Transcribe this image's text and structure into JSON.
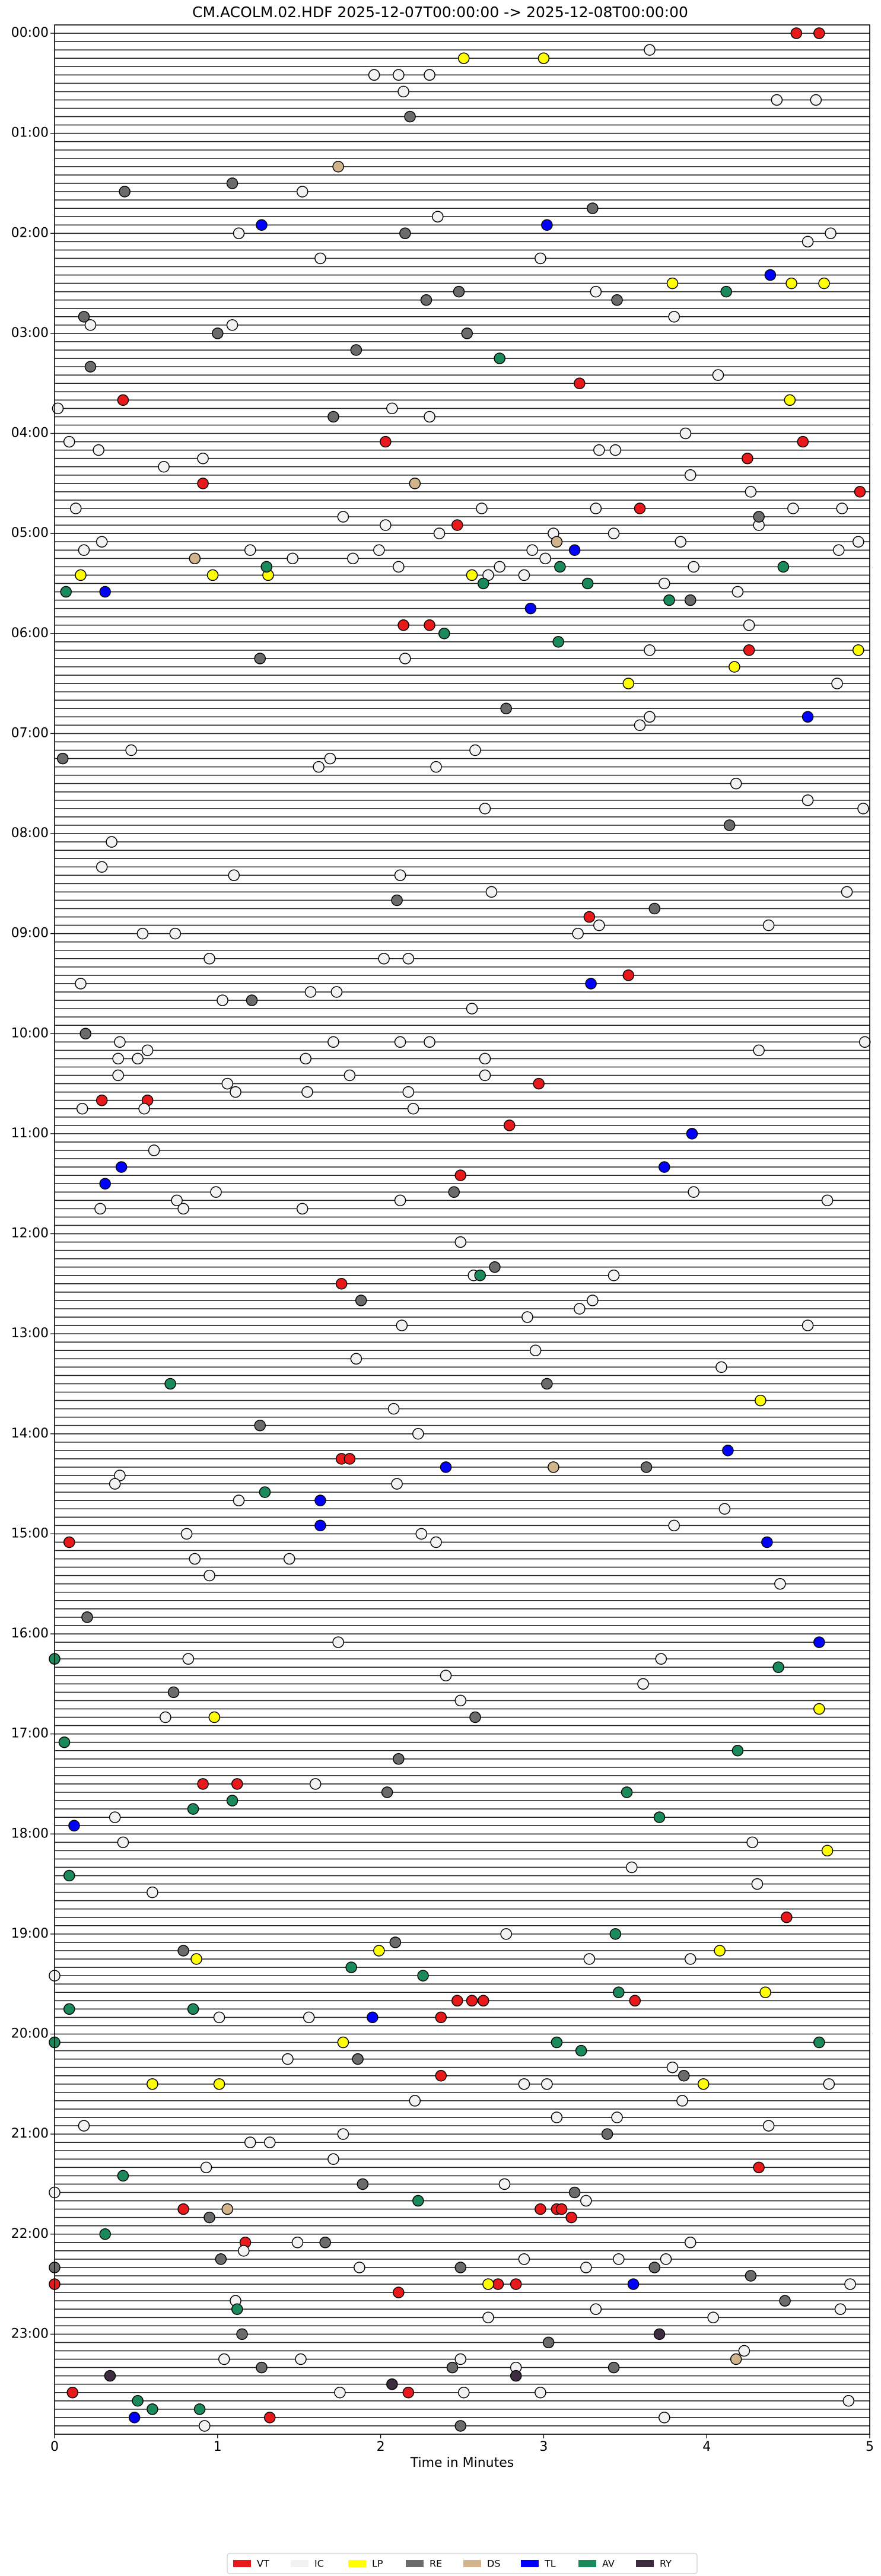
{
  "chart_data": {
    "type": "scatter",
    "title": "CM.ACOLM.02.HDF  2025-12-07T00:00:00 -> 2025-12-08T00:00:00",
    "x_label": "Time in Minutes",
    "xlim": [
      0,
      5
    ],
    "xticks": [
      0,
      1,
      2,
      3,
      4,
      5
    ],
    "ylim": [
      1440,
      -5
    ],
    "yticks": [
      {
        "value": 0,
        "label": "00:00"
      },
      {
        "value": 60,
        "label": "01:00"
      },
      {
        "value": 120,
        "label": "02:00"
      },
      {
        "value": 180,
        "label": "03:00"
      },
      {
        "value": 240,
        "label": "04:00"
      },
      {
        "value": 300,
        "label": "05:00"
      },
      {
        "value": 360,
        "label": "06:00"
      },
      {
        "value": 420,
        "label": "07:00"
      },
      {
        "value": 480,
        "label": "08:00"
      },
      {
        "value": 540,
        "label": "09:00"
      },
      {
        "value": 600,
        "label": "10:00"
      },
      {
        "value": 660,
        "label": "11:00"
      },
      {
        "value": 720,
        "label": "12:00"
      },
      {
        "value": 780,
        "label": "13:00"
      },
      {
        "value": 840,
        "label": "14:00"
      },
      {
        "value": 900,
        "label": "15:00"
      },
      {
        "value": 960,
        "label": "16:00"
      },
      {
        "value": 1020,
        "label": "17:00"
      },
      {
        "value": 1080,
        "label": "18:00"
      },
      {
        "value": 1140,
        "label": "19:00"
      },
      {
        "value": 1200,
        "label": "20:00"
      },
      {
        "value": 1260,
        "label": "21:00"
      },
      {
        "value": 1320,
        "label": "22:00"
      },
      {
        "value": 1380,
        "label": "23:00"
      }
    ],
    "legend": "lower center",
    "trace_color": "#222222",
    "series": [
      {
        "name": "VT",
        "color": "#e8191b",
        "x": [
          4.55,
          4.69,
          3.22,
          0.42,
          2.03,
          4.59,
          4.25,
          0.91,
          4.94,
          3.59,
          2.47,
          2.14,
          2.3,
          4.26,
          3.28,
          3.52,
          2.97,
          0.29,
          0.57,
          2.79,
          2.49,
          1.76,
          1.76,
          1.81,
          0.09,
          0.91,
          1.12,
          4.49,
          3.56,
          2.47,
          2.56,
          2.63,
          2.37,
          2.37,
          4.32,
          0.79,
          2.98,
          3.08,
          3.11,
          3.17,
          1.17,
          0,
          2.72,
          2.83,
          2.11,
          2.17,
          0.11,
          1.32
        ],
        "values": [
          0,
          0,
          210,
          220,
          245,
          245,
          255,
          270,
          275,
          285,
          295,
          355,
          355,
          370,
          530,
          565,
          630,
          640,
          640,
          655,
          685,
          750,
          855,
          855,
          905,
          1050,
          1050,
          1130,
          1180,
          1180,
          1180,
          1180,
          1190,
          1225,
          1280,
          1305,
          1305,
          1305,
          1305,
          1310,
          1325,
          1350,
          1350,
          1350,
          1355,
          1415,
          1415,
          1430
        ]
      },
      {
        "name": "IC",
        "color": "#f2f2f2",
        "x": [
          3.65,
          1.96,
          2.11,
          2.3,
          2.14,
          4.43,
          4.67,
          1.52,
          2.35,
          1.13,
          4.76,
          4.62,
          1.63,
          2.98,
          3.32,
          3.8,
          0.22,
          1.09,
          4.07,
          0.02,
          2.07,
          2.3,
          3.87,
          0.09,
          0.27,
          3.34,
          3.44,
          0.91,
          0.67,
          3.9,
          4.27,
          0.13,
          2.62,
          3.32,
          4.53,
          4.83,
          1.77,
          4.32,
          2.03,
          2.36,
          3.06,
          3.43,
          0.29,
          3.84,
          4.93,
          0.18,
          1.2,
          1.99,
          2.93,
          4.81,
          1.46,
          1.83,
          3.01,
          2.11,
          2.73,
          3.92,
          2.88,
          2.66,
          3.74,
          4.19,
          4.26,
          3.65,
          2.15,
          4.8,
          3.65,
          3.59,
          0.47,
          2.58,
          1.69,
          1.62,
          2.34,
          4.18,
          4.62,
          2.64,
          4.96,
          0.35,
          0.29,
          1.1,
          2.12,
          2.68,
          4.86,
          3.34,
          4.38,
          0.54,
          0.74,
          3.21,
          0.95,
          2.02,
          2.17,
          0.16,
          1.57,
          1.73,
          1.03,
          2.56,
          0.4,
          1.71,
          2.12,
          2.3,
          4.97,
          0.57,
          4.32,
          0.39,
          0.51,
          1.54,
          2.64,
          0.39,
          1.81,
          2.64,
          1.06,
          1.11,
          1.55,
          2.17,
          0.17,
          0.55,
          2.2,
          0.61,
          0.99,
          3.92,
          0.75,
          2.12,
          4.74,
          0.28,
          0.79,
          1.52,
          2.49,
          2.57,
          3.43,
          3.3,
          3.22,
          2.9,
          2.13,
          4.62,
          2.95,
          1.85,
          4.09,
          2.08,
          2.23,
          0.4,
          0.37,
          2.1,
          1.13,
          4.11,
          3.8,
          0.81,
          2.25,
          2.34,
          0.86,
          1.44,
          0.95,
          4.45,
          1.74,
          0.82,
          3.72,
          2.4,
          3.61,
          2.49,
          0.68,
          1.6,
          0.37,
          0.42,
          4.28,
          3.54,
          4.31,
          0.6,
          2.77,
          3.28,
          3.9,
          0,
          1.01,
          1.56,
          1.43,
          3.79,
          2.88,
          3.02,
          4.75,
          2.21,
          3.85,
          3.08,
          3.45,
          0.18,
          4.38,
          1.77,
          1.2,
          1.32,
          1.71,
          0.93,
          2.76,
          0,
          3.26,
          1.49,
          3.9,
          1.16,
          2.88,
          3.46,
          3.75,
          1.87,
          3.26,
          4.88,
          1.11,
          3.32,
          4.82,
          2.66,
          4.04,
          4.23,
          1.04,
          1.51,
          2.49,
          2.83,
          1.75,
          2.51,
          2.98,
          4.87,
          3.74,
          0.92
        ],
        "values": [
          10,
          25,
          25,
          25,
          35,
          40,
          40,
          95,
          110,
          120,
          120,
          125,
          135,
          135,
          155,
          170,
          175,
          175,
          205,
          225,
          225,
          230,
          240,
          245,
          250,
          250,
          250,
          255,
          260,
          265,
          275,
          285,
          285,
          285,
          285,
          285,
          290,
          295,
          295,
          300,
          300,
          300,
          305,
          305,
          305,
          310,
          310,
          310,
          310,
          310,
          315,
          315,
          315,
          320,
          320,
          320,
          325,
          325,
          330,
          335,
          355,
          370,
          375,
          390,
          410,
          415,
          430,
          430,
          435,
          440,
          440,
          450,
          460,
          465,
          465,
          485,
          500,
          505,
          505,
          515,
          515,
          535,
          535,
          540,
          540,
          540,
          555,
          555,
          555,
          570,
          575,
          575,
          580,
          585,
          605,
          605,
          605,
          605,
          605,
          610,
          610,
          615,
          615,
          615,
          615,
          625,
          625,
          625,
          630,
          635,
          635,
          635,
          645,
          645,
          645,
          670,
          695,
          695,
          700,
          700,
          700,
          705,
          705,
          705,
          725,
          745,
          745,
          760,
          765,
          770,
          775,
          775,
          790,
          795,
          800,
          825,
          840,
          865,
          870,
          870,
          880,
          885,
          895,
          900,
          900,
          905,
          915,
          915,
          925,
          930,
          965,
          975,
          975,
          985,
          990,
          1000,
          1010,
          1050,
          1070,
          1085,
          1085,
          1100,
          1110,
          1115,
          1140,
          1155,
          1155,
          1165,
          1190,
          1190,
          1215,
          1220,
          1230,
          1230,
          1230,
          1240,
          1240,
          1250,
          1250,
          1255,
          1255,
          1260,
          1265,
          1265,
          1275,
          1280,
          1290,
          1295,
          1300,
          1325,
          1325,
          1330,
          1335,
          1335,
          1335,
          1340,
          1340,
          1350,
          1360,
          1365,
          1365,
          1370,
          1370,
          1390,
          1395,
          1395,
          1395,
          1400,
          1415,
          1415,
          1415,
          1420,
          1430,
          1435
        ]
      },
      {
        "name": "LP",
        "color": "#ffff00",
        "x": [
          2.51,
          3.0,
          3.79,
          4.52,
          4.72,
          4.51,
          0.16,
          0.97,
          1.31,
          2.56,
          4.93,
          4.17,
          3.52,
          4.33,
          0.98,
          4.69,
          4.74,
          1.99,
          4.08,
          0.87,
          4.36,
          1.77,
          0.6,
          1.01,
          3.98,
          2.66
        ],
        "values": [
          15,
          15,
          150,
          150,
          150,
          220,
          325,
          325,
          325,
          325,
          370,
          380,
          390,
          820,
          1010,
          1005,
          1090,
          1150,
          1150,
          1155,
          1175,
          1205,
          1230,
          1230,
          1230,
          1350
        ]
      },
      {
        "name": "RE",
        "color": "#6b6b6b",
        "x": [
          2.18,
          1.09,
          0.43,
          3.3,
          2.15,
          2.48,
          2.28,
          3.45,
          0.18,
          1.0,
          2.53,
          1.85,
          0.22,
          1.71,
          4.32,
          3.9,
          1.26,
          2.77,
          0.05,
          4.14,
          2.1,
          3.68,
          1.21,
          0.19,
          2.45,
          2.7,
          1.88,
          3.02,
          1.26,
          3.63,
          0.2,
          0.73,
          2.58,
          2.11,
          2.04,
          0.79,
          2.09,
          1.86,
          3.86,
          3.39,
          1.89,
          3.19,
          0.95,
          1.66,
          1.02,
          0,
          2.49,
          3.68,
          4.27,
          4.48,
          1.15,
          3.03,
          1.27,
          2.44,
          3.43,
          2.49
        ],
        "values": [
          50,
          90,
          95,
          105,
          120,
          155,
          160,
          160,
          170,
          180,
          180,
          190,
          200,
          230,
          290,
          340,
          375,
          405,
          435,
          475,
          520,
          525,
          580,
          600,
          695,
          740,
          760,
          810,
          835,
          860,
          950,
          995,
          1010,
          1035,
          1055,
          1150,
          1145,
          1215,
          1225,
          1260,
          1290,
          1295,
          1310,
          1325,
          1335,
          1340,
          1340,
          1340,
          1345,
          1360,
          1380,
          1385,
          1400,
          1400,
          1400,
          1435
        ]
      },
      {
        "name": "DS",
        "color": "#d2b48c",
        "x": [
          1.74,
          2.21,
          3.08,
          0.86,
          3.06,
          1.06,
          4.18
        ],
        "values": [
          80,
          270,
          305,
          315,
          860,
          1305,
          1395
        ]
      },
      {
        "name": "TL",
        "color": "#0000ff",
        "x": [
          1.27,
          3.02,
          4.39,
          3.19,
          0.31,
          2.92,
          4.62,
          3.29,
          3.91,
          0.41,
          3.74,
          0.31,
          4.13,
          2.4,
          1.63,
          1.63,
          4.37,
          4.69,
          0.12,
          1.95,
          3.55,
          0.49
        ],
        "values": [
          115,
          115,
          145,
          310,
          335,
          345,
          410,
          570,
          660,
          680,
          680,
          690,
          850,
          860,
          880,
          895,
          905,
          965,
          1075,
          1190,
          1350,
          1430
        ]
      },
      {
        "name": "AV",
        "color": "#1b8a5a",
        "x": [
          4.12,
          2.73,
          1.3,
          3.1,
          4.47,
          0.07,
          2.63,
          3.27,
          3.77,
          2.39,
          3.09,
          2.61,
          0.71,
          1.29,
          4.44,
          0,
          0.06,
          4.19,
          3.51,
          1.09,
          0.85,
          3.71,
          0.09,
          3.44,
          1.82,
          2.26,
          3.46,
          0.09,
          0.85,
          0,
          3.08,
          4.69,
          3.23,
          0.42,
          2.23,
          0.31,
          1.12,
          0.51,
          0.89,
          0.6
        ],
        "values": [
          155,
          195,
          320,
          320,
          320,
          335,
          330,
          330,
          340,
          360,
          365,
          745,
          810,
          875,
          980,
          975,
          1025,
          1030,
          1055,
          1060,
          1065,
          1070,
          1105,
          1140,
          1160,
          1165,
          1175,
          1185,
          1185,
          1205,
          1205,
          1205,
          1210,
          1285,
          1300,
          1320,
          1365,
          1420,
          1425,
          1425
        ]
      },
      {
        "name": "RY",
        "color": "#3d2b40",
        "x": [
          3.71,
          0.34,
          2.07,
          2.83
        ],
        "values": [
          1380,
          1405,
          1410,
          1405
        ]
      }
    ]
  }
}
